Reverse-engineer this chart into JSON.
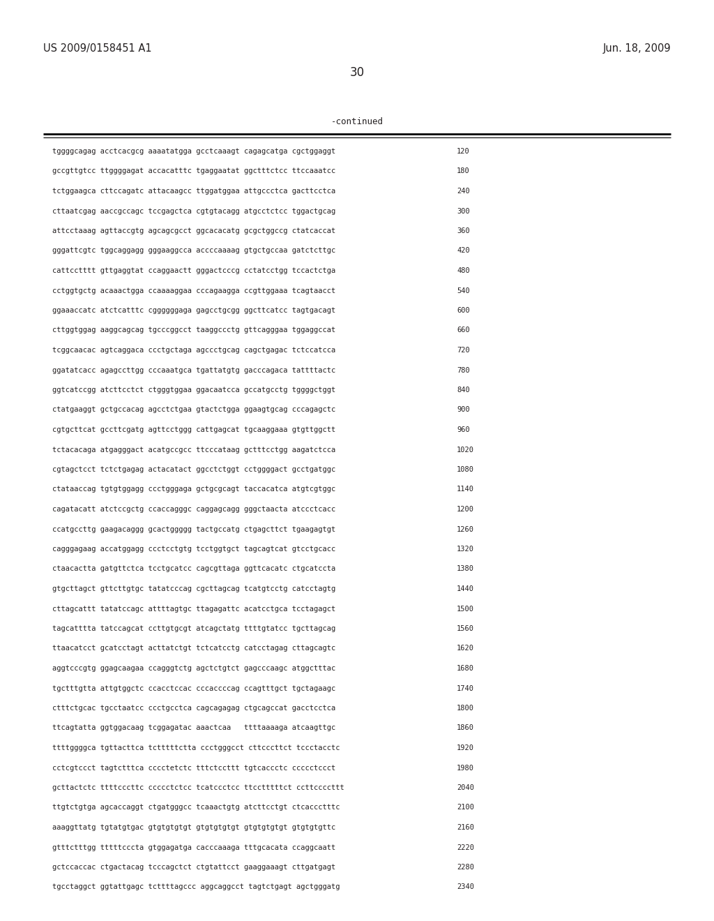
{
  "header_left": "US 2009/0158451 A1",
  "header_right": "Jun. 18, 2009",
  "page_number": "30",
  "continued_label": "-continued",
  "background_color": "#ffffff",
  "text_color": "#231f20",
  "sequence_lines": [
    [
      "tggggcagag acctcacgcg aaaatatgga gcctcaaagt cagagcatga cgctggaggt",
      "120"
    ],
    [
      "gccgttgtcc ttggggagat accacatttc tgaggaatat ggctttctcc ttccaaatcc",
      "180"
    ],
    [
      "tctggaagca cttccagatc attacaagcc ttggatggaa attgccctca gacttcctca",
      "240"
    ],
    [
      "cttaatcgag aaccgccagc tccgagctca cgtgtacagg atgcctctcc tggactgcag",
      "300"
    ],
    [
      "attcctaaag agttaccgtg agcagcgcct ggcacacatg gcgctggccg ctatcaccat",
      "360"
    ],
    [
      "gggattcgtc tggcaggagg gggaaggcca accccaaaag gtgctgccaa gatctcttgc",
      "420"
    ],
    [
      "cattcctttt gttgaggtat ccaggaactt gggactcccg cctatcctgg tccactctga",
      "480"
    ],
    [
      "cctggtgctg acaaactgga ccaaaaggaa cccagaagga ccgttggaaa tcagtaacct",
      "540"
    ],
    [
      "ggaaaccatc atctcatttc cggggggaga gagcctgcgg ggcttcatcc tagtgacagt",
      "600"
    ],
    [
      "cttggtggag aaggcagcag tgcccggcct taaggccctg gttcagggaa tggaggccat",
      "660"
    ],
    [
      "tcggcaacac agtcaggaca ccctgctaga agccctgcag cagctgagac tctccatcca",
      "720"
    ],
    [
      "ggatatcacc agagccttgg cccaaatgca tgattatgtg gacccagaca tattttactc",
      "780"
    ],
    [
      "ggtcatccgg atcttcctct ctgggtggaa ggacaatcca gccatgcctg tggggctggt",
      "840"
    ],
    [
      "ctatgaaggt gctgccacag agcctctgaa gtactctgga ggaagtgcag cccagagctc",
      "900"
    ],
    [
      "cgtgcttcat gccttcgatg agttcctggg cattgagcat tgcaaggaaa gtgttggctt",
      "960"
    ],
    [
      "tctacacaga atgagggact acatgccgcc ttcccataag gctttcctgg aagatctcca",
      "1020"
    ],
    [
      "cgtagctcct tctctgagag actacatact ggcctctggt cctggggact gcctgatggc",
      "1080"
    ],
    [
      "ctataaccag tgtgtggagg ccctgggaga gctgcgcagt taccacatca atgtcgtggc",
      "1140"
    ],
    [
      "cagatacatt atctccgctg ccaccagggc caggagcagg gggctaacta atccctcacc",
      "1200"
    ],
    [
      "ccatgccttg gaagacaggg gcactggggg tactgccatg ctgagcttct tgaagagtgt",
      "1260"
    ],
    [
      "cagggagaag accatggagg ccctcctgtg tcctggtgct tagcagtcat gtcctgcacc",
      "1320"
    ],
    [
      "ctaacactta gatgttctca tcctgcatcc cagcgttaga ggttcacatc ctgcatccta",
      "1380"
    ],
    [
      "gtgcttagct gttcttgtgc tatatcccag cgcttagcag tcatgtcctg catcctagtg",
      "1440"
    ],
    [
      "cttagcattt tatatccagc attttagtgc ttagagattc acatcctgca tcctagagct",
      "1500"
    ],
    [
      "tagcatttta tatccagcat ccttgtgcgt atcagctatg ttttgtatcc tgcttagcag",
      "1560"
    ],
    [
      "ttaacatcct gcatcctagt acttatctgt tctcatcctg catcctagag cttagcagtc",
      "1620"
    ],
    [
      "aggtcccgtg ggagcaagaa ccagggtctg agctctgtct gagcccaagc atggctttac",
      "1680"
    ],
    [
      "tgctttgtta attgtggctc ccacctccac cccaccccag ccagtttgct tgctagaagc",
      "1740"
    ],
    [
      "ctttctgcac tgcctaatcc ccctgcctca cagcagagag ctgcagccat gacctcctca",
      "1800"
    ],
    [
      "ttcagtatta ggtggacaag tcggagatac aaactcaa   ttttaaaaga atcaagttgc",
      "1860"
    ],
    [
      "ttttggggca tgttacttca tctttttctta ccctgggcct cttcccttct tccctacctc",
      "1920"
    ],
    [
      "cctcgtccct tagtctttca cccctetctc tttctccttt tgtcaccctc ccccctccct",
      "1980"
    ],
    [
      "gcttactctc ttttcccttc ccccctctcc tcatccctcc ttcctttttct ccttccccttt",
      "2040"
    ],
    [
      "ttgtctgtga agcaccaggt ctgatgggcc tcaaactgtg atcttcctgt ctcaccctttc",
      "2100"
    ],
    [
      "aaaggttatg tgtatgtgac gtgtgtgtgt gtgtgtgtgt gtgtgtgtgt gtgtgtgttc",
      "2160"
    ],
    [
      "gtttctttgg tttttcccta gtggagatga cacccaaaga tttgcacata ccaggcaatt",
      "2220"
    ],
    [
      "gctccaccac ctgactacag tcccagctct ctgtattcct gaaggaaagt cttgatgagt",
      "2280"
    ],
    [
      "tgcctaggct ggtattgagc tcttttagccc aggcaggcct tagtctgagt agctgggatg",
      "2340"
    ]
  ]
}
